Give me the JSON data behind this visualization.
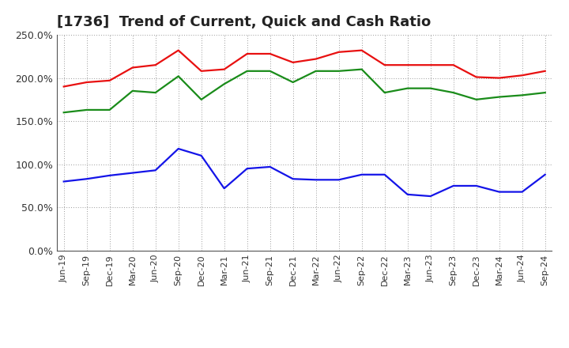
{
  "title": "[1736]  Trend of Current, Quick and Cash Ratio",
  "labels": [
    "Jun-19",
    "Sep-19",
    "Dec-19",
    "Mar-20",
    "Jun-20",
    "Sep-20",
    "Dec-20",
    "Mar-21",
    "Jun-21",
    "Sep-21",
    "Dec-21",
    "Mar-22",
    "Jun-22",
    "Sep-22",
    "Dec-22",
    "Mar-23",
    "Jun-23",
    "Sep-23",
    "Dec-23",
    "Mar-24",
    "Jun-24",
    "Sep-24"
  ],
  "current_ratio": [
    190,
    195,
    197,
    212,
    215,
    232,
    208,
    210,
    228,
    228,
    218,
    222,
    230,
    232,
    215,
    215,
    215,
    215,
    201,
    200,
    203,
    208
  ],
  "quick_ratio": [
    160,
    163,
    163,
    185,
    183,
    202,
    175,
    193,
    208,
    208,
    195,
    208,
    208,
    210,
    183,
    188,
    188,
    183,
    175,
    178,
    180,
    183
  ],
  "cash_ratio": [
    80,
    83,
    87,
    90,
    93,
    118,
    110,
    72,
    95,
    97,
    83,
    82,
    82,
    88,
    88,
    65,
    63,
    75,
    75,
    68,
    68,
    88
  ],
  "ylim": [
    0,
    250
  ],
  "yticks": [
    0,
    50,
    100,
    150,
    200,
    250
  ],
  "ytick_labels": [
    "0.0%",
    "50.0%",
    "100.0%",
    "150.0%",
    "200.0%",
    "250.0%"
  ],
  "current_color": "#e81010",
  "quick_color": "#1a8c1a",
  "cash_color": "#1414e8",
  "background_color": "#ffffff",
  "plot_bg_color": "#ffffff",
  "grid_color": "#999999",
  "line_width": 1.6,
  "title_fontsize": 13,
  "tick_fontsize": 9,
  "legend_fontsize": 10
}
